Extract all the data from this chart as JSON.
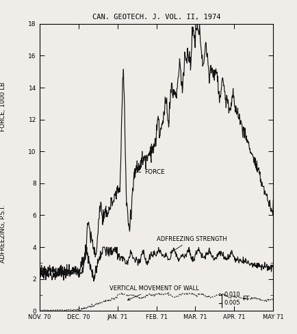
{
  "title": "CAN. GEOTECH. J. VOL. II, 1974",
  "ylabel_force": "FORCE, 1000 LB",
  "ylabel_adfreeze": "ADFREEZING, P.S.I.",
  "ylabel_ft": "FT",
  "xlabels": [
    "NOV. 70",
    "DEC. 70",
    "JAN. 71",
    "FEB. 71",
    "MAR. 71",
    "APR. 71",
    "MAY 71"
  ],
  "force_label": "FORCE",
  "adfreeze_label": "ADFREEZING STRENGTH",
  "vertical_label": "VERTICAL MOVEMENT OF WALL",
  "legend_0010": "0.010",
  "legend_0005": "0.005",
  "background_color": "#f0ede8",
  "line_color": "#111111"
}
